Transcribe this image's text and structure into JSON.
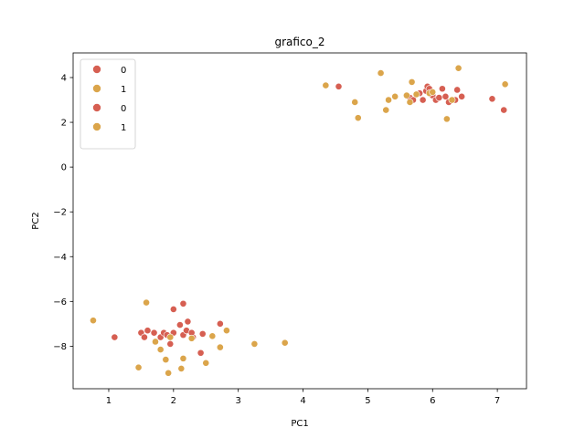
{
  "chart_data": {
    "type": "scatter",
    "title": "grafico_2",
    "xlabel": "PC1",
    "ylabel": "PC2",
    "xlim": [
      0.45,
      7.45
    ],
    "ylim": [
      -9.9,
      5.1
    ],
    "xticks": [
      1,
      2,
      3,
      4,
      5,
      6,
      7
    ],
    "yticks": [
      -8,
      -6,
      -4,
      -2,
      0,
      2,
      4
    ],
    "grid": false,
    "legend_position": "top-left",
    "colors": {
      "0": "#d65f52",
      "1": "#dba54b"
    },
    "legend": [
      {
        "label": "0",
        "color": "#d65f52"
      },
      {
        "label": "1",
        "color": "#dba54b"
      },
      {
        "label": "0",
        "color": "#d65f52"
      },
      {
        "label": "1",
        "color": "#dba54b"
      }
    ],
    "series": [
      {
        "name": "0",
        "color": "#d65f52",
        "points": [
          [
            1.09,
            -7.6
          ],
          [
            1.5,
            -7.4
          ],
          [
            1.55,
            -7.6
          ],
          [
            1.6,
            -7.3
          ],
          [
            1.7,
            -7.4
          ],
          [
            1.8,
            -7.6
          ],
          [
            1.85,
            -7.4
          ],
          [
            1.9,
            -7.5
          ],
          [
            1.95,
            -7.9
          ],
          [
            2.0,
            -7.4
          ],
          [
            2.0,
            -6.35
          ],
          [
            2.1,
            -7.05
          ],
          [
            2.15,
            -6.1
          ],
          [
            2.15,
            -7.5
          ],
          [
            2.2,
            -7.3
          ],
          [
            2.22,
            -6.9
          ],
          [
            2.3,
            -7.6
          ],
          [
            2.28,
            -7.4
          ],
          [
            2.42,
            -8.3
          ],
          [
            2.45,
            -7.45
          ],
          [
            2.72,
            -7.0
          ],
          [
            4.55,
            3.6
          ],
          [
            5.65,
            3.1
          ],
          [
            5.7,
            3.0
          ],
          [
            5.8,
            3.3
          ],
          [
            5.85,
            3.0
          ],
          [
            5.9,
            3.4
          ],
          [
            5.92,
            3.6
          ],
          [
            5.95,
            3.5
          ],
          [
            6.0,
            3.2
          ],
          [
            6.05,
            3.0
          ],
          [
            6.1,
            3.1
          ],
          [
            6.15,
            3.5
          ],
          [
            6.2,
            3.15
          ],
          [
            6.25,
            2.9
          ],
          [
            6.35,
            3.0
          ],
          [
            6.38,
            3.45
          ],
          [
            6.45,
            3.15
          ],
          [
            6.92,
            3.05
          ],
          [
            7.1,
            2.55
          ]
        ]
      },
      {
        "name": "1",
        "color": "#dba54b",
        "points": [
          [
            0.76,
            -6.85
          ],
          [
            1.46,
            -8.95
          ],
          [
            1.58,
            -6.05
          ],
          [
            1.72,
            -7.8
          ],
          [
            1.8,
            -8.15
          ],
          [
            1.88,
            -8.6
          ],
          [
            1.92,
            -9.2
          ],
          [
            1.95,
            -7.6
          ],
          [
            2.12,
            -9.0
          ],
          [
            2.15,
            -8.55
          ],
          [
            2.28,
            -7.65
          ],
          [
            2.5,
            -8.75
          ],
          [
            2.6,
            -7.55
          ],
          [
            2.72,
            -8.05
          ],
          [
            2.82,
            -7.3
          ],
          [
            3.25,
            -7.9
          ],
          [
            3.72,
            -7.85
          ],
          [
            4.35,
            3.65
          ],
          [
            4.8,
            2.9
          ],
          [
            4.85,
            2.2
          ],
          [
            5.2,
            4.2
          ],
          [
            5.28,
            2.55
          ],
          [
            5.32,
            3.0
          ],
          [
            5.42,
            3.15
          ],
          [
            5.6,
            3.2
          ],
          [
            5.65,
            2.9
          ],
          [
            5.68,
            3.8
          ],
          [
            5.75,
            3.25
          ],
          [
            5.95,
            3.3
          ],
          [
            6.0,
            3.35
          ],
          [
            6.22,
            2.15
          ],
          [
            6.3,
            3.0
          ],
          [
            6.4,
            4.42
          ],
          [
            7.12,
            3.7
          ]
        ]
      }
    ]
  }
}
